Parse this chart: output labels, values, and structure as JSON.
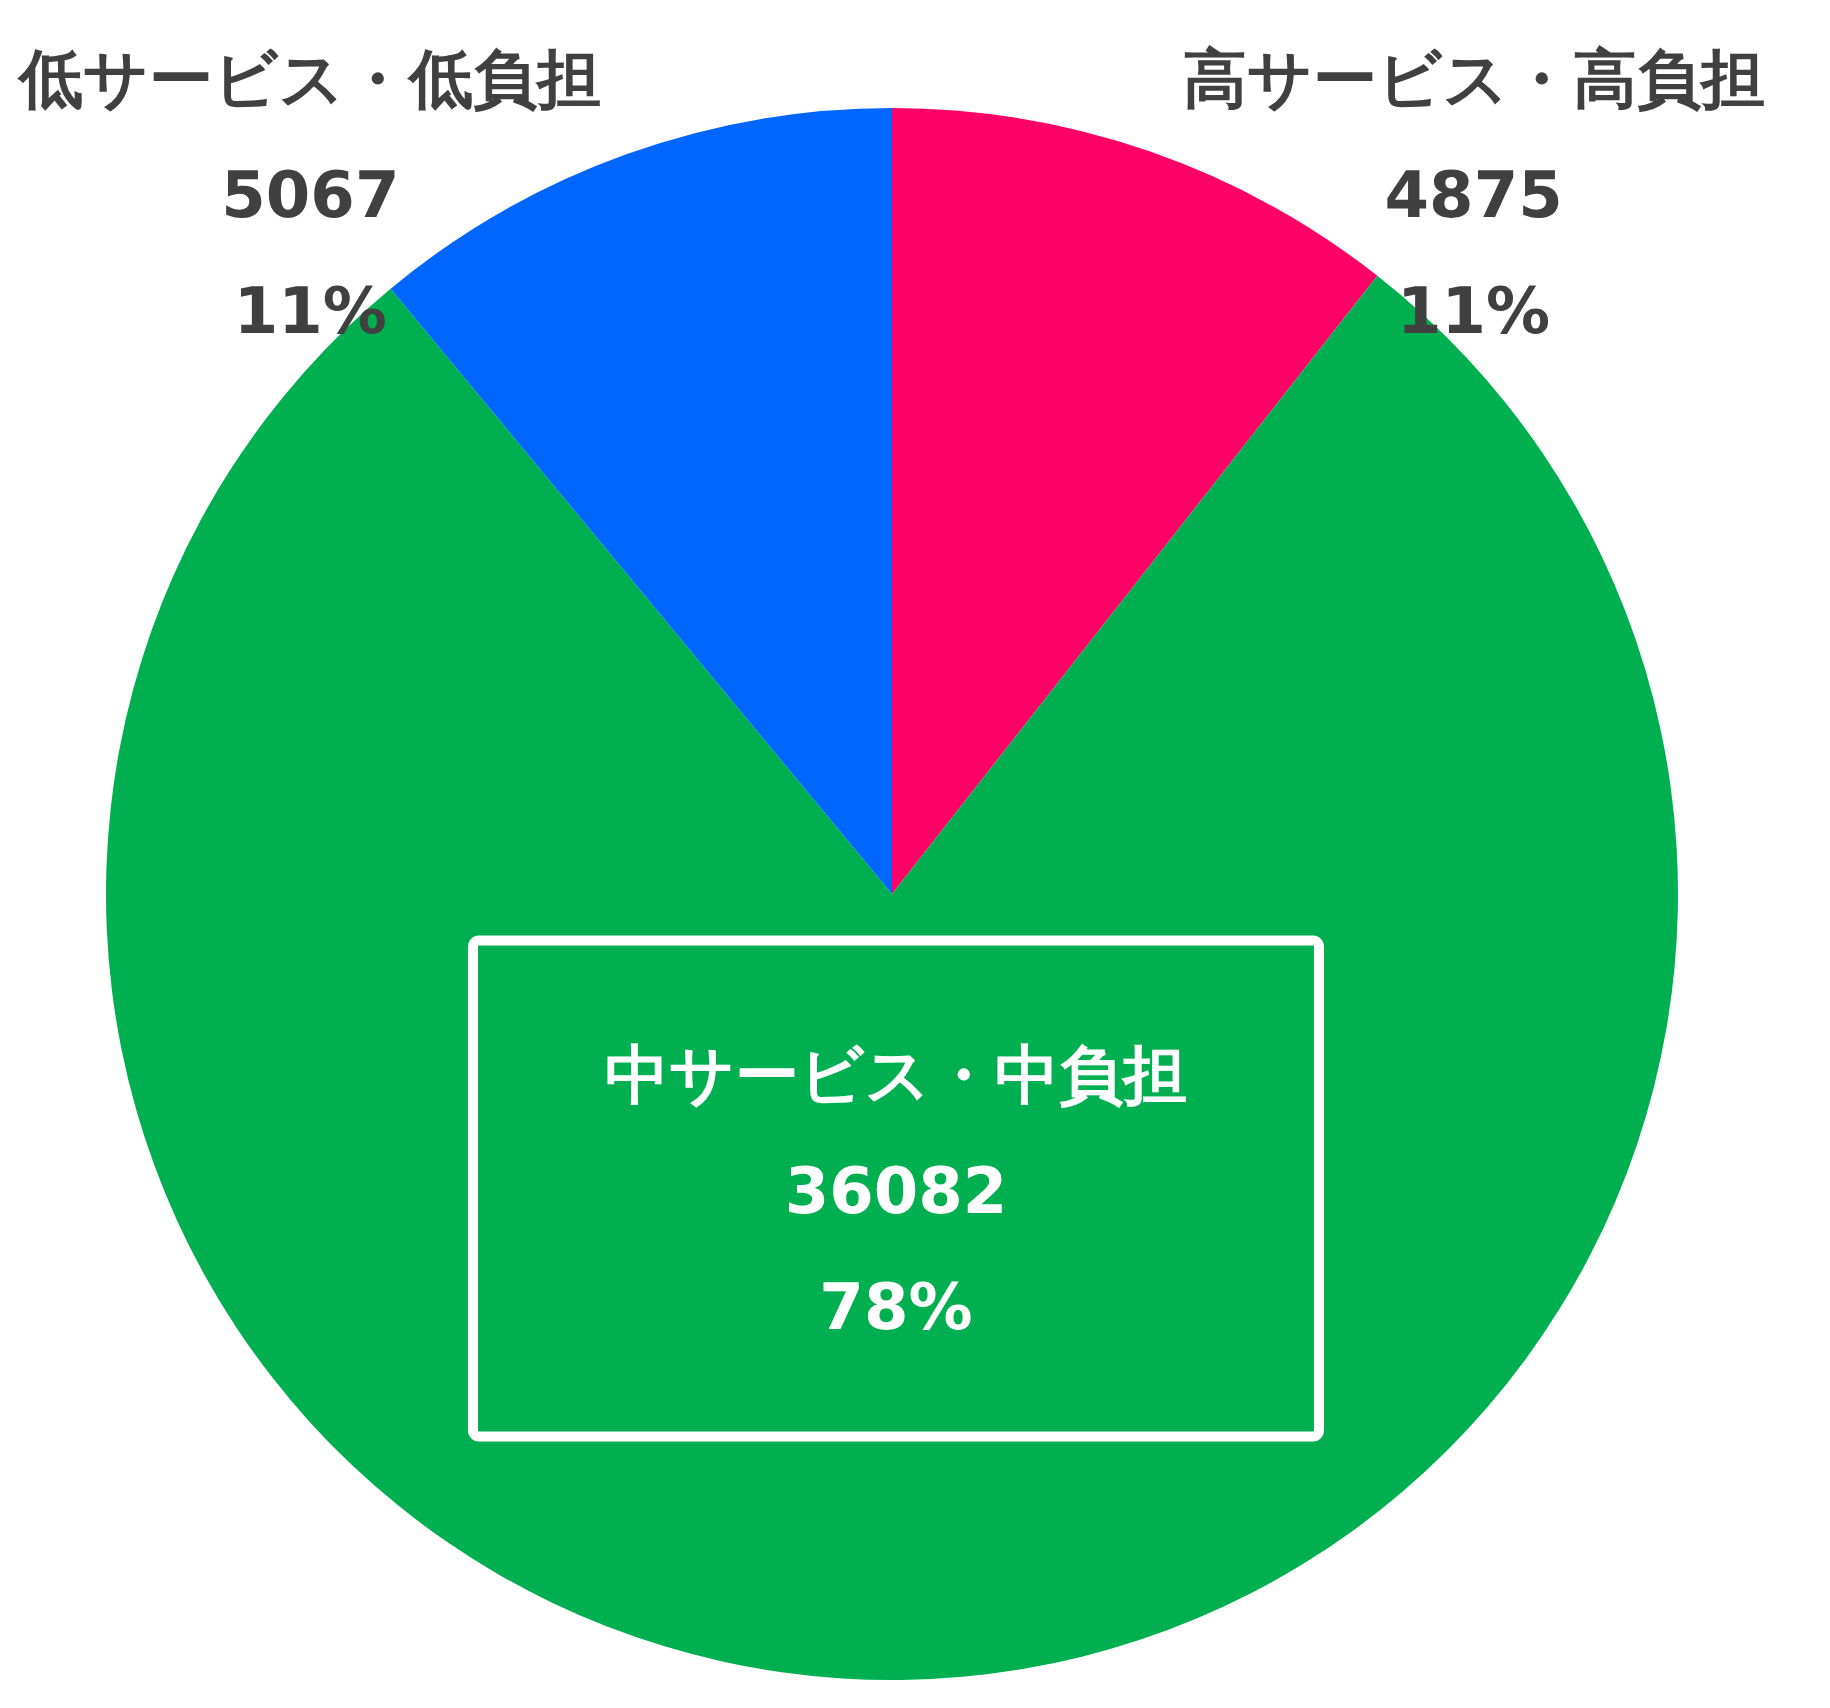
{
  "chart_data": {
    "type": "pie",
    "categories": [
      "高サービス・高負担",
      "中サービス・中負担",
      "低サービス・低負担"
    ],
    "values": [
      4875,
      36082,
      5067
    ],
    "colors": [
      "#ff0066",
      "#00b050",
      "#0066ff"
    ],
    "value_labels": [
      "4875\n11%",
      "36082\n78%",
      "5067\n11%"
    ],
    "legend": false
  }
}
